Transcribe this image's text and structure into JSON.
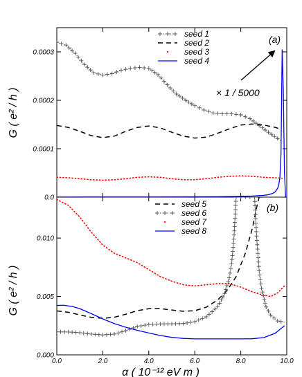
{
  "chart_data": [
    {
      "type": "line",
      "panel_label": "(a)",
      "ylabel": "G ( e² / h )",
      "xlabel": "",
      "xlim": [
        0.0,
        10.0
      ],
      "ylim": [
        0.0,
        0.00035
      ],
      "yticks": [
        {
          "value": 0.0,
          "label": "0.0"
        },
        {
          "value": 0.0001,
          "label": "0.0001"
        },
        {
          "value": 0.0002,
          "label": "0.0002"
        },
        {
          "value": 0.0003,
          "label": "0.0003"
        }
      ],
      "xticks": [
        0.0,
        2.0,
        4.0,
        6.0,
        8.0,
        10.0
      ],
      "legend_position": "top-center",
      "annotation": {
        "text": "× 1 / 5000",
        "arrow_target": [
          9.8,
          0.000305
        ]
      },
      "series": [
        {
          "name": "seed 1",
          "style": "dotted-plus",
          "color": "#555555",
          "x": [
            0.0,
            0.4,
            0.8,
            1.2,
            1.6,
            2.0,
            2.4,
            2.8,
            3.2,
            3.6,
            4.0,
            4.4,
            4.8,
            5.2,
            5.6,
            6.0,
            6.4,
            6.8,
            7.2,
            7.6,
            8.0,
            8.4,
            8.8,
            9.2,
            9.6,
            9.8
          ],
          "y": [
            0.00032,
            0.000314,
            0.000297,
            0.000274,
            0.000257,
            0.000252,
            0.000255,
            0.000262,
            0.000266,
            0.000268,
            0.000266,
            0.000253,
            0.000232,
            0.000213,
            0.0002,
            0.000189,
            0.00018,
            0.000174,
            0.000172,
            0.000172,
            0.00017,
            0.000162,
            0.000148,
            0.000134,
            0.000121,
            0.000115
          ]
        },
        {
          "name": "seed 2",
          "style": "dashed",
          "color": "#000000",
          "x": [
            0.0,
            0.5,
            1.0,
            1.5,
            2.0,
            2.5,
            3.0,
            3.5,
            4.0,
            4.5,
            5.0,
            5.5,
            6.0,
            6.5,
            7.0,
            7.5,
            8.0,
            8.5,
            9.0,
            9.5,
            9.7
          ],
          "y": [
            0.000148,
            0.000144,
            0.000136,
            0.000127,
            0.000123,
            0.000126,
            0.000136,
            0.000144,
            0.000147,
            0.000143,
            0.000134,
            0.000126,
            0.000122,
            0.000124,
            0.000132,
            0.000141,
            0.000149,
            0.000151,
            0.000149,
            0.000144,
            0.000141
          ]
        },
        {
          "name": "seed 3",
          "style": "red-dots",
          "color": "#ff0000",
          "x": [
            0.0,
            0.5,
            1.0,
            1.5,
            2.0,
            2.5,
            3.0,
            3.5,
            4.0,
            4.5,
            5.0,
            5.5,
            6.0,
            6.5,
            7.0,
            7.5,
            8.0,
            8.5,
            9.0,
            9.5,
            9.8
          ],
          "y": [
            4.1e-05,
            4e-05,
            3.8e-05,
            3.6e-05,
            3.5e-05,
            3.6e-05,
            3.8e-05,
            4.1e-05,
            4.2e-05,
            4.1e-05,
            3.8e-05,
            3.6e-05,
            3.6e-05,
            3.8e-05,
            4.1e-05,
            4.3e-05,
            4.4e-05,
            4.3e-05,
            4.1e-05,
            4e-05,
            3.9e-05
          ]
        },
        {
          "name": "seed 4",
          "style": "solid",
          "color": "#0000ff",
          "x": [
            0.0,
            2.0,
            4.0,
            6.0,
            7.0,
            8.0,
            8.5,
            9.0,
            9.2,
            9.4,
            9.5,
            9.6,
            9.65,
            9.7,
            9.75,
            9.8,
            9.85,
            9.9,
            9.95
          ],
          "y": [
            2e-07,
            3e-07,
            4e-07,
            6e-07,
            9e-07,
            1.5e-06,
            2.2e-06,
            3.8e-06,
            5e-06,
            8e-06,
            1.1e-05,
            1.8e-05,
            2.5e-05,
            4e-05,
            9e-05,
            0.000305,
            0.00022,
            5e-05,
            0.0
          ]
        }
      ]
    },
    {
      "type": "line",
      "panel_label": "(b)",
      "ylabel": "G ( e² / h )",
      "xlabel": "α ( 10⁻¹² eV m )",
      "xlim": [
        0.0,
        10.0
      ],
      "ylim": [
        0.0,
        0.0135
      ],
      "yticks": [
        {
          "value": 0.0,
          "label": "0.000"
        },
        {
          "value": 0.005,
          "label": "0.005"
        },
        {
          "value": 0.01,
          "label": "0.010"
        }
      ],
      "xticks": [
        {
          "value": 0.0,
          "label": "0.0"
        },
        {
          "value": 2.0,
          "label": "2.0"
        },
        {
          "value": 4.0,
          "label": "4.0"
        },
        {
          "value": 6.0,
          "label": "6.0"
        },
        {
          "value": 8.0,
          "label": "8.0"
        },
        {
          "value": 10.0,
          "label": "10.0"
        }
      ],
      "legend_position": "top-center",
      "series": [
        {
          "name": "seed 5",
          "style": "dashed",
          "color": "#000000",
          "x": [
            0.0,
            0.5,
            1.0,
            1.5,
            2.0,
            2.5,
            3.0,
            3.5,
            4.0,
            4.5,
            5.0,
            5.5,
            6.0,
            6.5,
            7.0,
            7.4,
            7.8,
            8.2,
            8.5,
            8.7,
            8.8
          ],
          "y": [
            0.00376,
            0.00365,
            0.00342,
            0.00321,
            0.00313,
            0.00322,
            0.00348,
            0.00378,
            0.00395,
            0.00396,
            0.00384,
            0.00373,
            0.00378,
            0.00408,
            0.00471,
            0.0055,
            0.0067,
            0.0087,
            0.0108,
            0.0127,
            0.0135
          ]
        },
        {
          "name": "seed 6",
          "style": "dotted-plus",
          "color": "#555555",
          "x": [
            0.0,
            0.5,
            1.0,
            1.5,
            2.0,
            2.5,
            3.0,
            3.5,
            4.0,
            4.5,
            5.0,
            5.5,
            6.0,
            6.5,
            7.0,
            7.3,
            7.5,
            7.6,
            7.7,
            7.8,
            8.6,
            8.7,
            8.8,
            8.9,
            9.1,
            9.3,
            9.6,
            9.9
          ],
          "y": [
            0.00197,
            0.00196,
            0.0019,
            0.00178,
            0.00171,
            0.00178,
            0.00207,
            0.00243,
            0.0026,
            0.00265,
            0.00266,
            0.00268,
            0.00284,
            0.00325,
            0.00414,
            0.00525,
            0.0066,
            0.0078,
            0.0099,
            0.0135,
            0.0135,
            0.0098,
            0.0072,
            0.0057,
            0.0041,
            0.0034,
            0.0029,
            0.0028
          ]
        },
        {
          "name": "seed 7",
          "style": "red-dots",
          "color": "#ff0000",
          "x": [
            0.0,
            0.5,
            1.0,
            1.5,
            2.0,
            2.5,
            3.0,
            3.5,
            4.0,
            4.5,
            5.0,
            5.5,
            6.0,
            6.5,
            7.0,
            7.5,
            8.0,
            8.5,
            9.0,
            9.3,
            9.6,
            9.9
          ],
          "y": [
            0.0133,
            0.0128,
            0.0118,
            0.0105,
            0.0094,
            0.0087,
            0.0083,
            0.0079,
            0.0073,
            0.0067,
            0.0063,
            0.006,
            0.0059,
            0.006,
            0.0061,
            0.0061,
            0.0058,
            0.0054,
            0.0051,
            0.005,
            0.0053,
            0.0059
          ]
        },
        {
          "name": "seed 8",
          "style": "solid",
          "color": "#0000ff",
          "x": [
            0.0,
            0.3,
            0.7,
            1.0,
            1.5,
            2.0,
            2.5,
            3.0,
            3.5,
            4.0,
            4.5,
            5.0,
            5.5,
            6.0,
            6.5,
            7.0,
            7.5,
            8.0,
            8.5,
            9.0,
            9.5,
            9.9
          ],
          "y": [
            0.00423,
            0.00425,
            0.00413,
            0.00395,
            0.00353,
            0.00308,
            0.00268,
            0.00236,
            0.0021,
            0.00187,
            0.00166,
            0.0015,
            0.00141,
            0.00137,
            0.00137,
            0.00137,
            0.00137,
            0.00137,
            0.00138,
            0.00148,
            0.00185,
            0.0025
          ]
        }
      ]
    }
  ]
}
